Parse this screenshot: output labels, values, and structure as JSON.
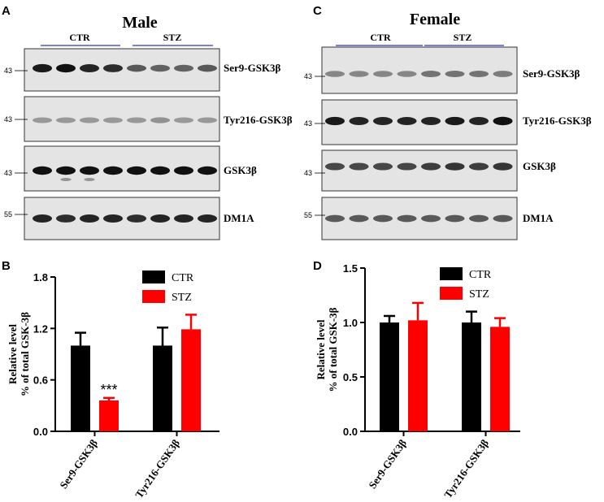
{
  "panel_letters": {
    "a": "A",
    "b": "B",
    "c": "C",
    "d": "D"
  },
  "blots": {
    "male": {
      "title": "Male",
      "groups": [
        "CTR",
        "STZ"
      ],
      "rows": [
        {
          "label": "Ser9-GSK3β",
          "marker": "43",
          "ctr_intensity": [
            0.95,
            1.0,
            0.9,
            0.85
          ],
          "stz_intensity": [
            0.6,
            0.55,
            0.55,
            0.6
          ],
          "smear": false
        },
        {
          "label": "Tyr216-GSK3β",
          "marker": "43",
          "ctr_intensity": [
            0.25,
            0.25,
            0.25,
            0.25
          ],
          "stz_intensity": [
            0.25,
            0.28,
            0.25,
            0.25
          ],
          "smear": false
        },
        {
          "label": "GSK3β",
          "marker": "43",
          "ctr_intensity": [
            1.0,
            1.0,
            1.0,
            1.0
          ],
          "stz_intensity": [
            1.0,
            1.0,
            1.0,
            1.0
          ],
          "smear": true
        },
        {
          "label": "DM1A",
          "marker": "55",
          "ctr_intensity": [
            0.9,
            0.85,
            0.9,
            0.9
          ],
          "stz_intensity": [
            0.85,
            0.9,
            0.9,
            0.9
          ],
          "smear": false
        }
      ]
    },
    "female": {
      "title": "Female",
      "groups": [
        "CTR",
        "STZ"
      ],
      "rows": [
        {
          "label": "Ser9-GSK3β",
          "marker": "43",
          "ctr_intensity": [
            0.35,
            0.35,
            0.35,
            0.35
          ],
          "stz_intensity": [
            0.45,
            0.45,
            0.45,
            0.4
          ],
          "smear": false
        },
        {
          "label": "Tyr216-GSK3β",
          "marker": "43",
          "ctr_intensity": [
            0.95,
            0.9,
            0.9,
            0.9
          ],
          "stz_intensity": [
            0.9,
            0.95,
            0.9,
            1.0
          ],
          "smear": false
        },
        {
          "label": "GSK3β",
          "marker": "43",
          "ctr_intensity": [
            0.7,
            0.7,
            0.7,
            0.7
          ],
          "stz_intensity": [
            0.75,
            0.8,
            0.75,
            0.8
          ],
          "smear": false
        },
        {
          "label": "DM1A",
          "marker": "55",
          "ctr_intensity": [
            0.6,
            0.6,
            0.6,
            0.6
          ],
          "stz_intensity": [
            0.6,
            0.6,
            0.6,
            0.6
          ],
          "smear": false
        }
      ]
    }
  },
  "colors": {
    "ctr": "#000000",
    "stz": "#ff0000",
    "group_line": "#5555cc"
  },
  "chart_data": [
    {
      "panel": "B",
      "type": "bar",
      "categories": [
        "Ser9-GSK3β",
        "Tyr216-GSK3β"
      ],
      "series": [
        {
          "name": "CTR",
          "values": [
            1.0,
            1.0
          ],
          "errors": [
            0.15,
            0.21
          ]
        },
        {
          "name": "STZ",
          "values": [
            0.36,
            1.19
          ],
          "errors": [
            0.03,
            0.17
          ]
        }
      ],
      "ylabel_line1": "Relative level",
      "ylabel_line2": "% of total GSK-3β",
      "ylim": [
        0,
        1.8
      ],
      "yticks": [
        "0.0",
        "0.6",
        "1.2",
        "1.8"
      ],
      "legend": [
        "CTR",
        "STZ"
      ],
      "annotations": [
        {
          "text": "***",
          "category": 0,
          "series": 1
        }
      ]
    },
    {
      "panel": "D",
      "type": "bar",
      "categories": [
        "Ser9-GSK3β",
        "Tyr216-GSK3β"
      ],
      "series": [
        {
          "name": "CTR",
          "values": [
            1.0,
            1.0
          ],
          "errors": [
            0.06,
            0.1
          ]
        },
        {
          "name": "STZ",
          "values": [
            1.02,
            0.96
          ],
          "errors": [
            0.16,
            0.08
          ]
        }
      ],
      "ylabel_line1": "Relative level",
      "ylabel_line2": "% of total GSK-3β",
      "ylim": [
        0,
        1.5
      ],
      "yticks": [
        "0.0",
        "0.5",
        "1.0",
        "1.5"
      ],
      "legend": [
        "CTR",
        "STZ"
      ],
      "annotations": []
    }
  ]
}
